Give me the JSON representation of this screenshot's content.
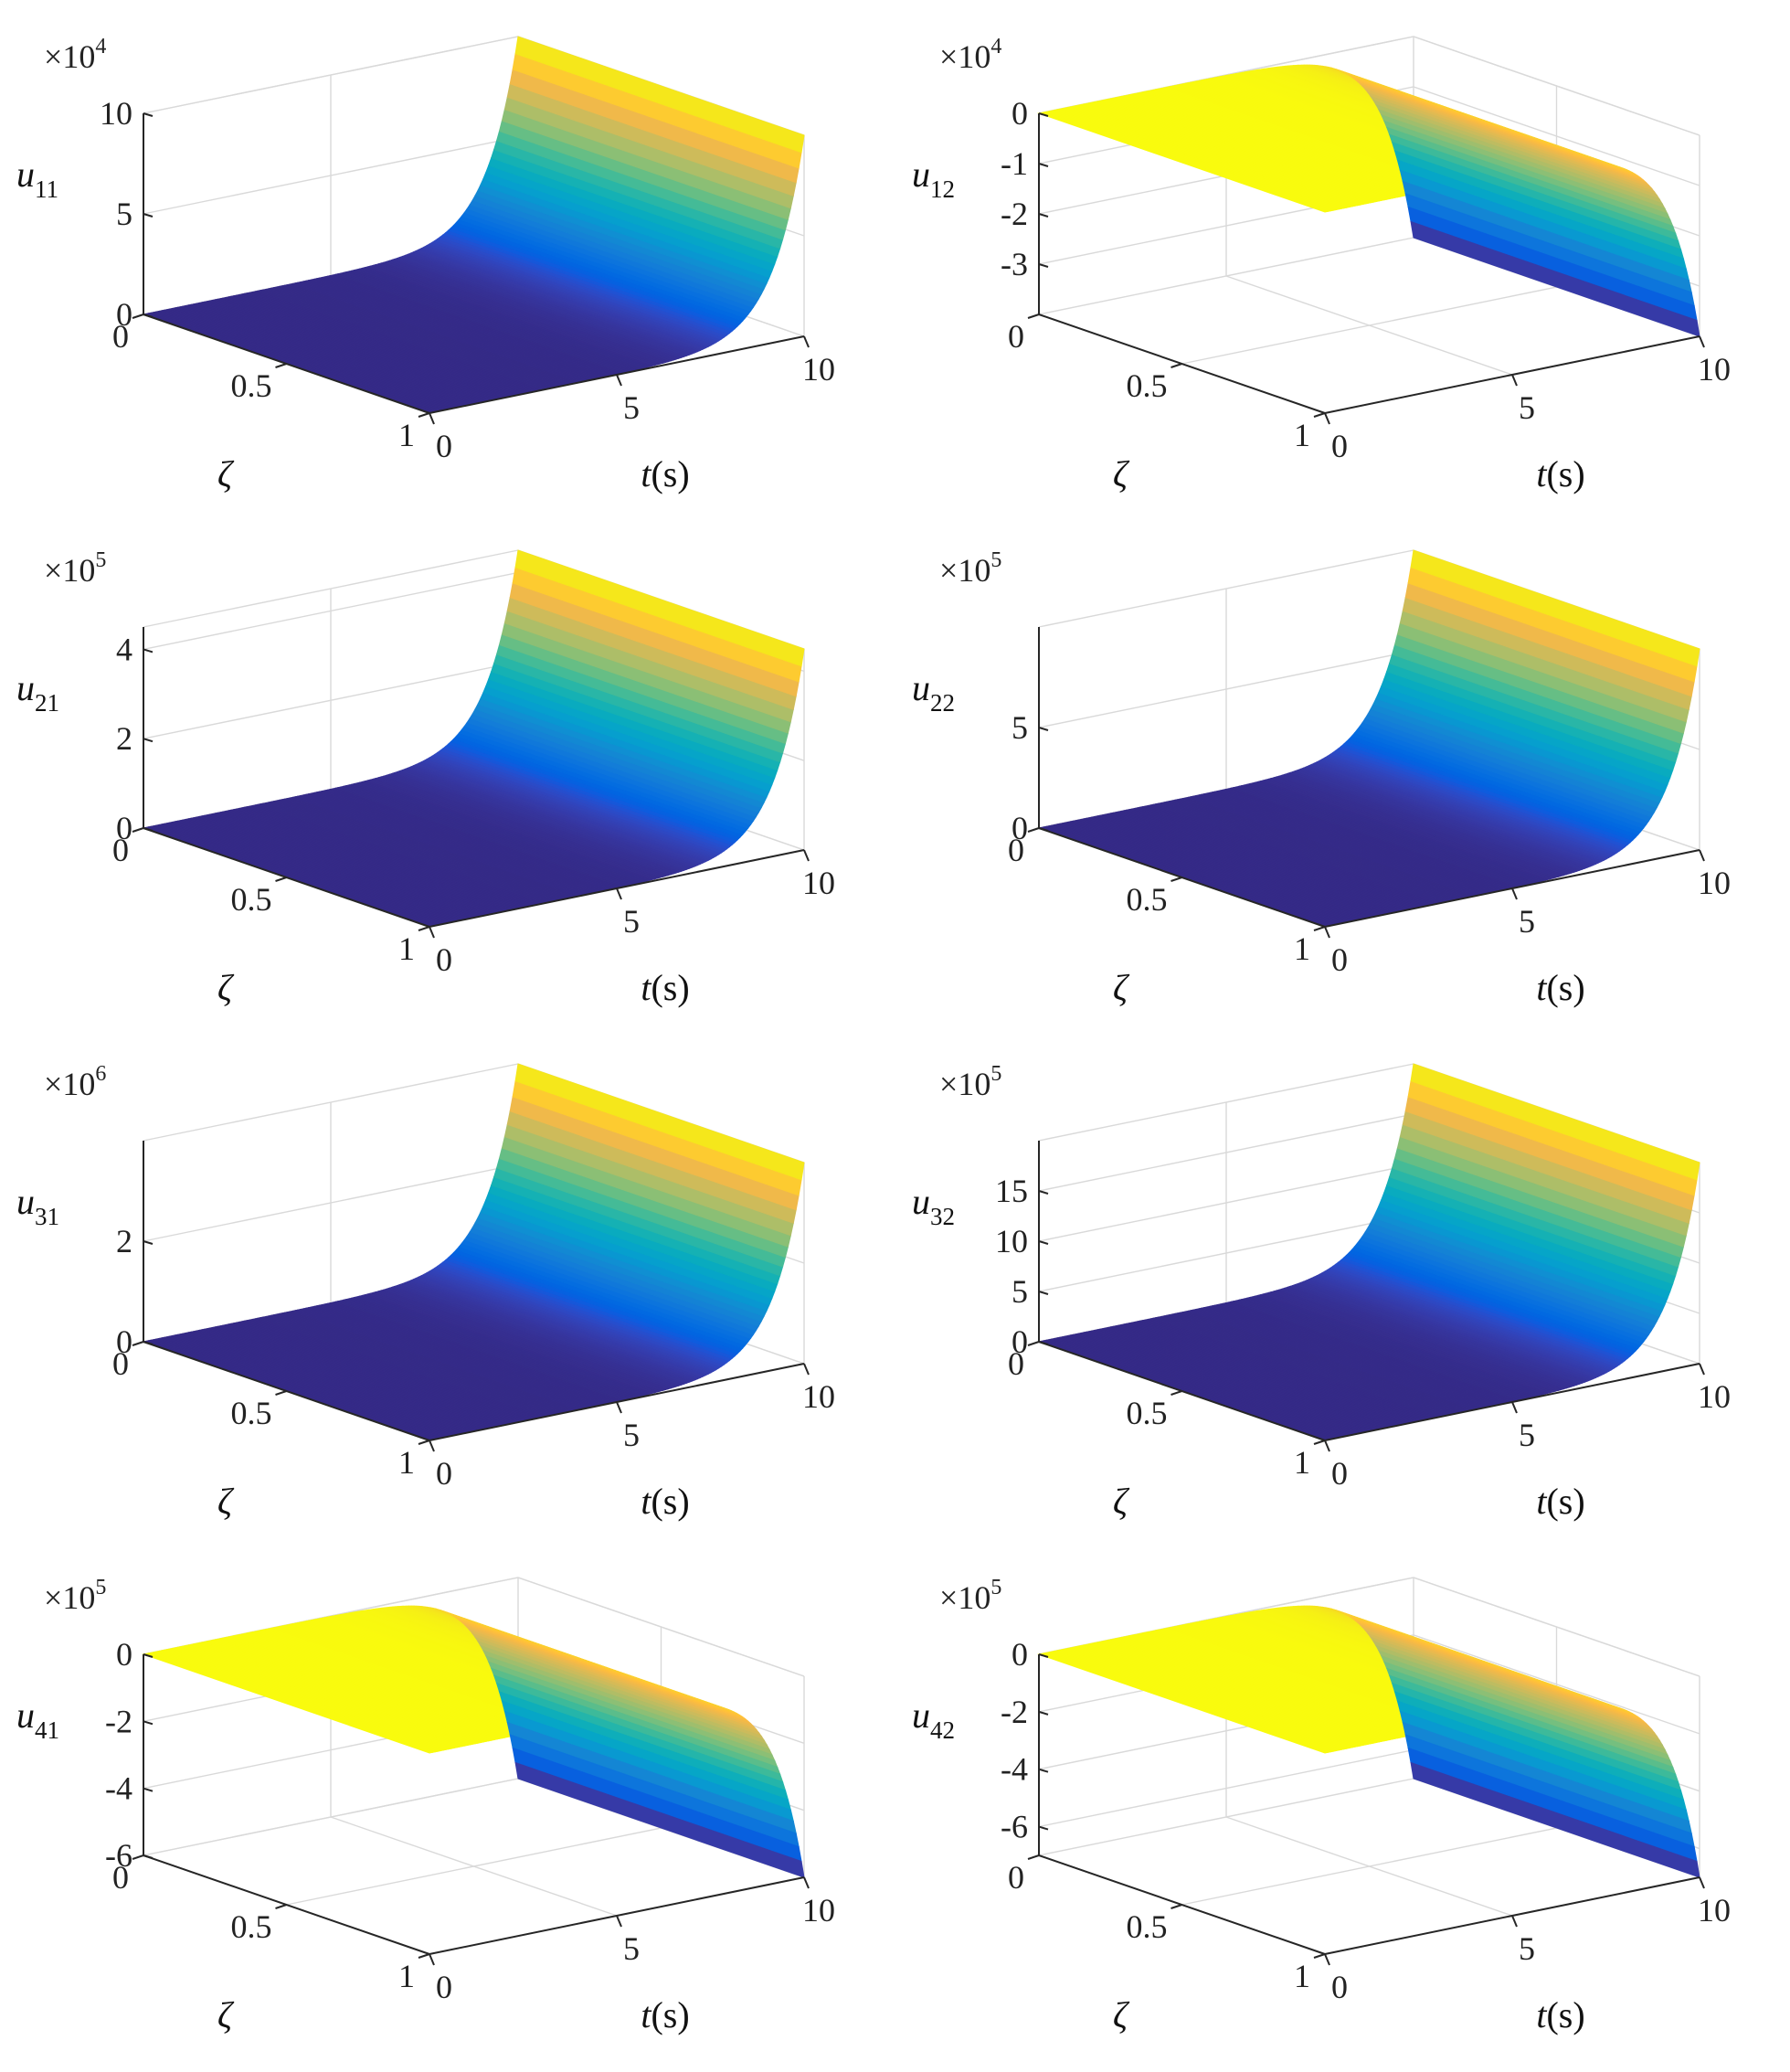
{
  "figure": {
    "background": "#ffffff",
    "colormap": "parula"
  },
  "chart_data": [
    {
      "type": "surface",
      "z_label": "u",
      "z_subscript": "11",
      "exponent_base": "10",
      "exponent": "4",
      "x_label_italic": "t",
      "x_label_rest": "(s)",
      "y_label": "ζ",
      "x_ticks": [
        "0",
        "5",
        "10"
      ],
      "y_ticks": [
        "0",
        "0.5",
        "1"
      ],
      "z_ticks": [
        "0",
        "5",
        "10"
      ],
      "xlim": [
        0,
        10
      ],
      "ylim": [
        0,
        1
      ],
      "zlim": [
        0,
        10
      ],
      "z_tick_values": [
        0,
        5,
        10
      ],
      "z_at_t_end": 10,
      "sign": 1,
      "grid": true
    },
    {
      "type": "surface",
      "z_label": "u",
      "z_subscript": "12",
      "exponent_base": "10",
      "exponent": "4",
      "x_label_italic": "t",
      "x_label_rest": "(s)",
      "y_label": "ζ",
      "x_ticks": [
        "0",
        "5",
        "10"
      ],
      "y_ticks": [
        "0",
        "0.5",
        "1"
      ],
      "z_ticks": [
        "0",
        "-1",
        "-2",
        "-3"
      ],
      "xlim": [
        0,
        10
      ],
      "ylim": [
        0,
        1
      ],
      "zlim": [
        -4,
        0
      ],
      "z_tick_values": [
        0,
        -1,
        -2,
        -3
      ],
      "z_at_t_end": -4,
      "sign": -1,
      "grid": true
    },
    {
      "type": "surface",
      "z_label": "u",
      "z_subscript": "21",
      "exponent_base": "10",
      "exponent": "5",
      "x_label_italic": "t",
      "x_label_rest": "(s)",
      "y_label": "ζ",
      "x_ticks": [
        "0",
        "5",
        "10"
      ],
      "y_ticks": [
        "0",
        "0.5",
        "1"
      ],
      "z_ticks": [
        "0",
        "2",
        "4"
      ],
      "xlim": [
        0,
        10
      ],
      "ylim": [
        0,
        1
      ],
      "zlim": [
        0,
        4.5
      ],
      "z_tick_values": [
        0,
        2,
        4
      ],
      "z_at_t_end": 4.5,
      "sign": 1,
      "grid": true
    },
    {
      "type": "surface",
      "z_label": "u",
      "z_subscript": "22",
      "exponent_base": "10",
      "exponent": "5",
      "x_label_italic": "t",
      "x_label_rest": "(s)",
      "y_label": "ζ",
      "x_ticks": [
        "0",
        "5",
        "10"
      ],
      "y_ticks": [
        "0",
        "0.5",
        "1"
      ],
      "z_ticks": [
        "0",
        "5"
      ],
      "xlim": [
        0,
        10
      ],
      "ylim": [
        0,
        1
      ],
      "zlim": [
        0,
        10
      ],
      "z_tick_values": [
        0,
        5
      ],
      "z_at_t_end": 10,
      "sign": 1,
      "grid": true
    },
    {
      "type": "surface",
      "z_label": "u",
      "z_subscript": "31",
      "exponent_base": "10",
      "exponent": "6",
      "x_label_italic": "t",
      "x_label_rest": "(s)",
      "y_label": "ζ",
      "x_ticks": [
        "0",
        "5",
        "10"
      ],
      "y_ticks": [
        "0",
        "0.5",
        "1"
      ],
      "z_ticks": [
        "0",
        "2"
      ],
      "xlim": [
        0,
        10
      ],
      "ylim": [
        0,
        1
      ],
      "zlim": [
        0,
        4
      ],
      "z_tick_values": [
        0,
        2
      ],
      "z_at_t_end": 4,
      "sign": 1,
      "grid": true
    },
    {
      "type": "surface",
      "z_label": "u",
      "z_subscript": "32",
      "exponent_base": "10",
      "exponent": "5",
      "x_label_italic": "t",
      "x_label_rest": "(s)",
      "y_label": "ζ",
      "x_ticks": [
        "0",
        "5",
        "10"
      ],
      "y_ticks": [
        "0",
        "0.5",
        "1"
      ],
      "z_ticks": [
        "0",
        "5",
        "10",
        "15"
      ],
      "xlim": [
        0,
        10
      ],
      "ylim": [
        0,
        1
      ],
      "zlim": [
        0,
        20
      ],
      "z_tick_values": [
        0,
        5,
        10,
        15
      ],
      "z_at_t_end": 20,
      "sign": 1,
      "grid": true
    },
    {
      "type": "surface",
      "z_label": "u",
      "z_subscript": "41",
      "exponent_base": "10",
      "exponent": "5",
      "x_label_italic": "t",
      "x_label_rest": "(s)",
      "y_label": "ζ",
      "x_ticks": [
        "0",
        "5",
        "10"
      ],
      "y_ticks": [
        "0",
        "0.5",
        "1"
      ],
      "z_ticks": [
        "0",
        "-2",
        "-4",
        "-6"
      ],
      "xlim": [
        0,
        10
      ],
      "ylim": [
        0,
        1
      ],
      "zlim": [
        -6,
        0
      ],
      "z_tick_values": [
        0,
        -2,
        -4,
        -6
      ],
      "z_at_t_end": -6,
      "sign": -1,
      "grid": true
    },
    {
      "type": "surface",
      "z_label": "u",
      "z_subscript": "42",
      "exponent_base": "10",
      "exponent": "5",
      "x_label_italic": "t",
      "x_label_rest": "(s)",
      "y_label": "ζ",
      "x_ticks": [
        "0",
        "5",
        "10"
      ],
      "y_ticks": [
        "0",
        "0.5",
        "1"
      ],
      "z_ticks": [
        "0",
        "-2",
        "-4",
        "-6"
      ],
      "xlim": [
        0,
        10
      ],
      "ylim": [
        0,
        1
      ],
      "zlim": [
        -7,
        0
      ],
      "z_tick_values": [
        0,
        -2,
        -4,
        -6
      ],
      "z_at_t_end": -7,
      "sign": -1,
      "grid": true
    }
  ]
}
